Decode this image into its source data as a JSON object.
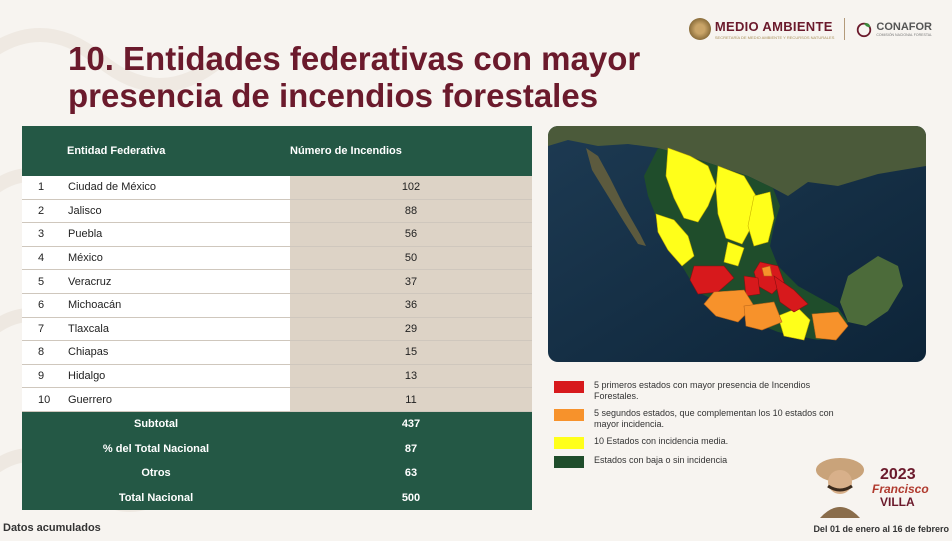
{
  "header": {
    "logo_medio_ambiente": "MEDIO AMBIENTE",
    "logo_medio_ambiente_sub": "SECRETARÍA DE MEDIO AMBIENTE Y RECURSOS NATURALES",
    "logo_conafor": "CONAFOR",
    "logo_conafor_sub": "COMISIÓN NACIONAL FORESTAL"
  },
  "title_line1": "10. Entidades federativas con mayor",
  "title_line2": "presencia de incendios forestales",
  "table": {
    "col_entity": "Entidad Federativa",
    "col_count": "Número de Incendios",
    "rows": [
      {
        "rank": "1",
        "name": "Ciudad de México",
        "value": "102"
      },
      {
        "rank": "2",
        "name": "Jalisco",
        "value": "88"
      },
      {
        "rank": "3",
        "name": "Puebla",
        "value": "56"
      },
      {
        "rank": "4",
        "name": "México",
        "value": "50"
      },
      {
        "rank": "5",
        "name": "Veracruz",
        "value": "37"
      },
      {
        "rank": "6",
        "name": "Michoacán",
        "value": "36"
      },
      {
        "rank": "7",
        "name": "Tlaxcala",
        "value": "29"
      },
      {
        "rank": "8",
        "name": "Chiapas",
        "value": "15"
      },
      {
        "rank": "9",
        "name": "Hidalgo",
        "value": "13"
      },
      {
        "rank": "10",
        "name": "Guerrero",
        "value": "11"
      }
    ],
    "summary": [
      {
        "label": "Subtotal",
        "value": "437"
      },
      {
        "label": "% del Total Nacional",
        "value": "87"
      },
      {
        "label": "Otros",
        "value": "63"
      },
      {
        "label": "Total Nacional",
        "value": "500"
      }
    ]
  },
  "legend": [
    {
      "color": "#d7191c",
      "text": "5 primeros estados con mayor presencia de Incendios Forestales."
    },
    {
      "color": "#f7922b",
      "text": "5 segundos estados, que complementan los 10 estados con mayor incidencia."
    },
    {
      "color": "#ffff1a",
      "text": "10 Estados con incidencia media."
    },
    {
      "color": "#1f4d2b",
      "text": "Estados con baja o sin incidencia"
    }
  ],
  "footer": {
    "left": "Datos acumulados",
    "right": "Del 01 de enero al 16 de febrero"
  },
  "villa_logo": {
    "year": "2023",
    "name": "Francisco",
    "name2": "VILLA"
  }
}
